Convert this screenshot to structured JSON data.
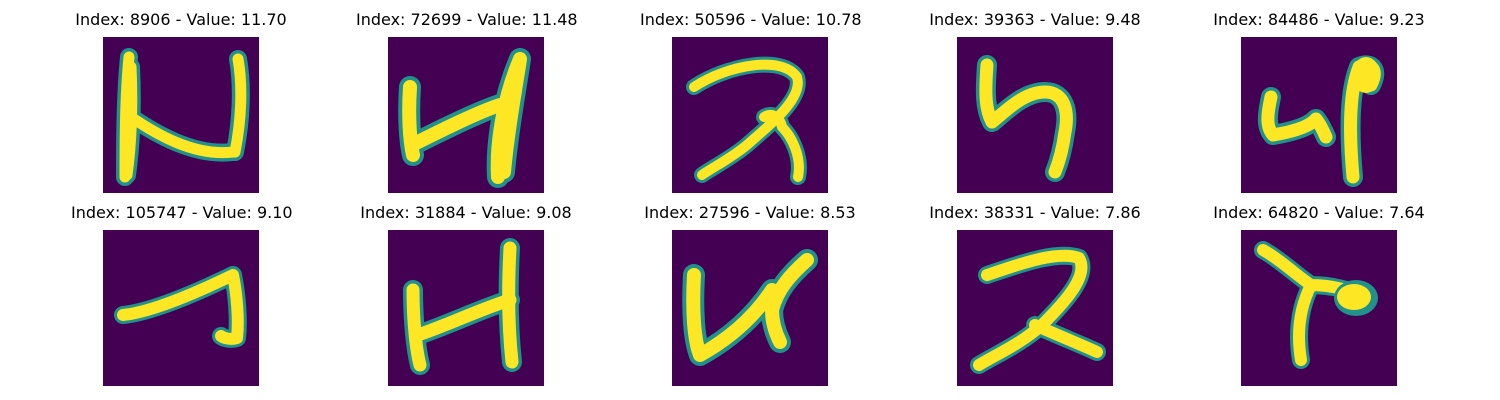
{
  "figure": {
    "panels": [
      {
        "title": "Index: 8906 - Value: 11.70",
        "image": "digit-sample-1"
      },
      {
        "title": "Index: 72699 - Value: 11.48",
        "image": "digit-sample-2"
      },
      {
        "title": "Index: 50596 - Value: 10.78",
        "image": "digit-sample-3"
      },
      {
        "title": "Index: 39363 - Value: 9.48",
        "image": "digit-sample-4"
      },
      {
        "title": "Index: 84486 - Value: 9.23",
        "image": "digit-sample-5"
      },
      {
        "title": "Index: 105747 - Value: 9.10",
        "image": "digit-sample-6"
      },
      {
        "title": "Index: 31884 - Value: 9.08",
        "image": "digit-sample-7"
      },
      {
        "title": "Index: 27596 - Value: 8.53",
        "image": "digit-sample-8"
      },
      {
        "title": "Index: 38331 - Value: 7.86",
        "image": "digit-sample-9"
      },
      {
        "title": "Index: 64820 - Value: 7.64",
        "image": "digit-sample-10"
      }
    ],
    "colors": {
      "background": "#440154",
      "edge": "#21918c",
      "stroke": "#fde725"
    }
  }
}
